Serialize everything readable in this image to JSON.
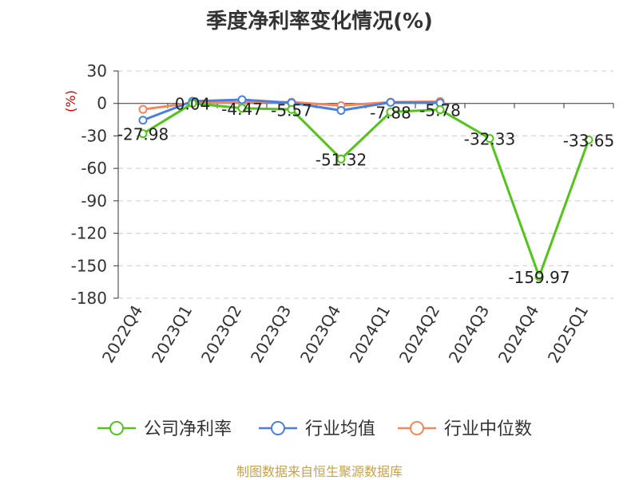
{
  "chart_data": {
    "type": "line",
    "title": "季度净利率变化情况(%)",
    "ylabel": "(%)",
    "categories": [
      "2022Q4",
      "2023Q1",
      "2023Q2",
      "2023Q3",
      "2023Q4",
      "2024Q1",
      "2024Q2",
      "2024Q3",
      "2024Q4",
      "2025Q1"
    ],
    "ylim": [
      -180,
      30
    ],
    "yticks": [
      30,
      0,
      -30,
      -60,
      -90,
      -120,
      -150,
      -180
    ],
    "grid": true,
    "legend_position": "bottom",
    "series": [
      {
        "name": "公司净利率",
        "color": "#52c41a",
        "values": [
          -27.98,
          0.04,
          -4.47,
          -5.57,
          -51.32,
          -7.88,
          -5.78,
          -32.33,
          -159.97,
          -33.65
        ],
        "labels": [
          "-27.98",
          "0.04",
          "-4.47",
          "-5.57",
          "-51.32",
          "-7.88",
          "-5.78",
          "-32.33",
          "-159.97",
          "-33.65"
        ]
      },
      {
        "name": "行业均值",
        "color": "#4a7fe0",
        "values": [
          -15.5,
          2.0,
          3.5,
          0.5,
          -6.5,
          1.0,
          0.5,
          null,
          null,
          null
        ]
      },
      {
        "name": "行业中位数",
        "color": "#f4875a",
        "values": [
          -5.5,
          0.5,
          1.0,
          1.2,
          -2.0,
          1.2,
          1.8,
          null,
          null,
          null
        ]
      }
    ]
  },
  "footer": {
    "source": "制图数据来自恒生聚源数据库"
  }
}
